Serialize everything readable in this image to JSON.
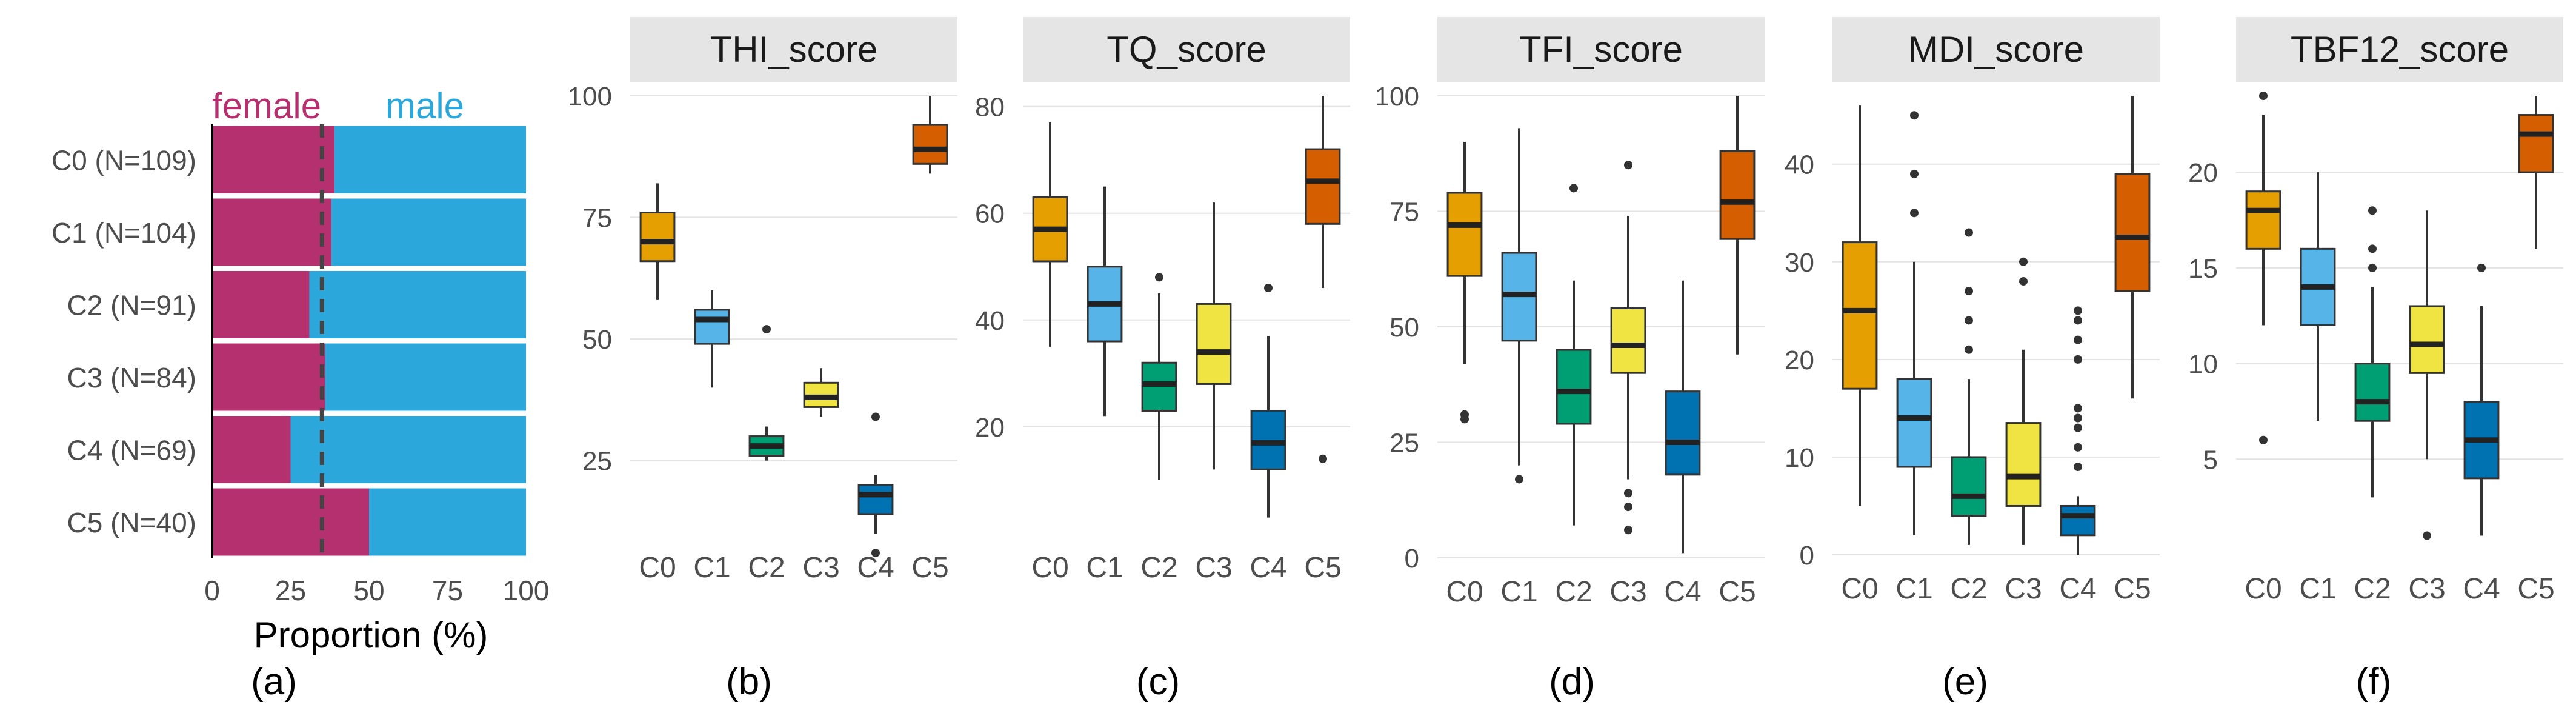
{
  "figure": {
    "panel_labels": [
      "(a)",
      "(b)",
      "(c)",
      "(d)",
      "(e)",
      "(f)"
    ]
  },
  "colors": {
    "female": "#B5306F",
    "male": "#2CA7DB",
    "C0": "#E69F00",
    "C1": "#56B4E9",
    "C2": "#009E73",
    "C3": "#F0E442",
    "C4": "#0072B2",
    "C5": "#D55E00",
    "strip_bg": "#E5E5E5",
    "grid": "#E3E3E3",
    "reference_line": "#444444"
  },
  "chart_data": [
    {
      "type": "bar",
      "stacked": true,
      "orientation": "horizontal",
      "categories": [
        "C0 (N=109)",
        "C1 (N=104)",
        "C2 (N=91)",
        "C3 (N=84)",
        "C4 (N=69)",
        "C5 (N=40)"
      ],
      "series": [
        {
          "name": "female",
          "values": [
            39,
            38,
            31,
            36,
            25,
            50
          ]
        },
        {
          "name": "male",
          "values": [
            61,
            62,
            69,
            64,
            75,
            50
          ]
        }
      ],
      "reference_line": 35,
      "xlabel": "Proportion (%)",
      "xlim": [
        0,
        100
      ],
      "xticks": [
        0,
        25,
        50,
        75,
        100
      ],
      "legend_placement": "top"
    },
    {
      "type": "boxplot",
      "title": "THI_score",
      "categories": [
        "C0",
        "C1",
        "C2",
        "C3",
        "C4",
        "C5"
      ],
      "ylim": [
        10,
        100
      ],
      "yticks": [
        25,
        50,
        75,
        100
      ],
      "boxes": [
        {
          "min": 58,
          "q1": 66,
          "median": 70,
          "q3": 76,
          "max": 82,
          "outliers": []
        },
        {
          "min": 40,
          "q1": 49,
          "median": 54,
          "q3": 56,
          "max": 60,
          "outliers": []
        },
        {
          "min": 25,
          "q1": 26,
          "median": 28,
          "q3": 30,
          "max": 32,
          "outliers": [
            52
          ]
        },
        {
          "min": 34,
          "q1": 36,
          "median": 38,
          "q3": 41,
          "max": 44,
          "outliers": []
        },
        {
          "min": 10,
          "q1": 14,
          "median": 18,
          "q3": 20,
          "max": 22,
          "outliers": [
            34,
            6
          ]
        },
        {
          "min": 84,
          "q1": 86,
          "median": 89,
          "q3": 94,
          "max": 100,
          "outliers": []
        }
      ]
    },
    {
      "type": "boxplot",
      "title": "TQ_score",
      "categories": [
        "C0",
        "C1",
        "C2",
        "C3",
        "C4",
        "C5"
      ],
      "ylim": [
        0,
        82
      ],
      "yticks": [
        20,
        40,
        60,
        80
      ],
      "boxes": [
        {
          "min": 35,
          "q1": 51,
          "median": 57,
          "q3": 63,
          "max": 77,
          "outliers": []
        },
        {
          "min": 22,
          "q1": 36,
          "median": 43,
          "q3": 50,
          "max": 65,
          "outliers": []
        },
        {
          "min": 10,
          "q1": 23,
          "median": 28,
          "q3": 32,
          "max": 45,
          "outliers": [
            48
          ]
        },
        {
          "min": 12,
          "q1": 28,
          "median": 34,
          "q3": 43,
          "max": 62,
          "outliers": []
        },
        {
          "min": 3,
          "q1": 12,
          "median": 17,
          "q3": 23,
          "max": 37,
          "outliers": [
            46
          ]
        },
        {
          "min": 46,
          "q1": 58,
          "median": 66,
          "q3": 72,
          "max": 82,
          "outliers": [
            14
          ]
        }
      ]
    },
    {
      "type": "boxplot",
      "title": "TFI_score",
      "categories": [
        "C0",
        "C1",
        "C2",
        "C3",
        "C4",
        "C5"
      ],
      "ylim": [
        0,
        100
      ],
      "yticks": [
        0,
        25,
        50,
        75,
        100
      ],
      "boxes": [
        {
          "min": 42,
          "q1": 61,
          "median": 72,
          "q3": 79,
          "max": 90,
          "outliers": [
            31,
            30
          ]
        },
        {
          "min": 20,
          "q1": 47,
          "median": 57,
          "q3": 66,
          "max": 93,
          "outliers": [
            17
          ]
        },
        {
          "min": 7,
          "q1": 29,
          "median": 36,
          "q3": 45,
          "max": 60,
          "outliers": [
            80
          ]
        },
        {
          "min": 17,
          "q1": 40,
          "median": 46,
          "q3": 54,
          "max": 74,
          "outliers": [
            85,
            14,
            11,
            6
          ]
        },
        {
          "min": 1,
          "q1": 18,
          "median": 25,
          "q3": 36,
          "max": 60,
          "outliers": []
        },
        {
          "min": 44,
          "q1": 69,
          "median": 77,
          "q3": 88,
          "max": 100,
          "outliers": []
        }
      ]
    },
    {
      "type": "boxplot",
      "title": "MDI_score",
      "categories": [
        "C0",
        "C1",
        "C2",
        "C3",
        "C4",
        "C5"
      ],
      "ylim": [
        0,
        47
      ],
      "yticks": [
        0,
        10,
        20,
        30,
        40
      ],
      "boxes": [
        {
          "min": 5,
          "q1": 17,
          "median": 25,
          "q3": 32,
          "max": 46,
          "outliers": []
        },
        {
          "min": 2,
          "q1": 9,
          "median": 14,
          "q3": 18,
          "max": 30,
          "outliers": [
            45,
            39,
            35
          ]
        },
        {
          "min": 1,
          "q1": 4,
          "median": 6,
          "q3": 10,
          "max": 18,
          "outliers": [
            33,
            27,
            24,
            21
          ]
        },
        {
          "min": 1,
          "q1": 5,
          "median": 8,
          "q3": 13.5,
          "max": 21,
          "outliers": [
            30,
            28
          ]
        },
        {
          "min": 0,
          "q1": 2,
          "median": 4,
          "q3": 5,
          "max": 6,
          "outliers": [
            25,
            24,
            22,
            20,
            15,
            14,
            13,
            11,
            9
          ]
        },
        {
          "min": 16,
          "q1": 27,
          "median": 32.5,
          "q3": 39,
          "max": 47,
          "outliers": []
        }
      ]
    },
    {
      "type": "boxplot",
      "title": "TBF12_score",
      "categories": [
        "C0",
        "C1",
        "C2",
        "C3",
        "C4",
        "C5"
      ],
      "ylim": [
        0,
        24
      ],
      "yticks": [
        5,
        10,
        15,
        20
      ],
      "boxes": [
        {
          "min": 12,
          "q1": 16,
          "median": 18,
          "q3": 19,
          "max": 23,
          "outliers": [
            24,
            6
          ]
        },
        {
          "min": 7,
          "q1": 12,
          "median": 14,
          "q3": 16,
          "max": 20,
          "outliers": []
        },
        {
          "min": 3,
          "q1": 7,
          "median": 8,
          "q3": 10,
          "max": 14,
          "outliers": [
            18,
            16,
            15
          ]
        },
        {
          "min": 5,
          "q1": 9.5,
          "median": 11,
          "q3": 13,
          "max": 18,
          "outliers": [
            1
          ]
        },
        {
          "min": 1,
          "q1": 4,
          "median": 6,
          "q3": 8,
          "max": 13,
          "outliers": [
            15
          ]
        },
        {
          "min": 16,
          "q1": 20,
          "median": 22,
          "q3": 23,
          "max": 24,
          "outliers": []
        }
      ]
    }
  ]
}
